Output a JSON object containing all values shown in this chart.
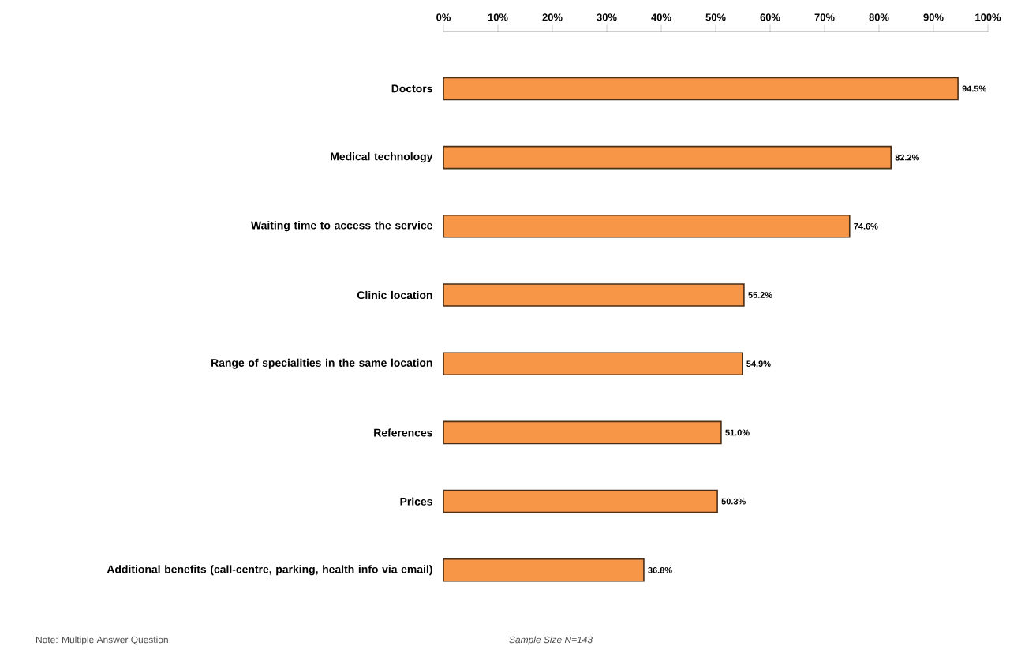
{
  "chart_data": {
    "type": "bar",
    "orientation": "horizontal",
    "categories": [
      "Doctors",
      "Medical technology",
      "Waiting time to access the service",
      "Clinic location",
      "Range of specialities in the same location",
      "References",
      "Prices",
      "Additional benefits (call-centre, parking, health info via email)"
    ],
    "values": [
      94.5,
      82.2,
      74.6,
      55.2,
      54.9,
      51.0,
      50.3,
      36.8
    ],
    "value_labels": [
      "94.5%",
      "82.2%",
      "74.6%",
      "55.2%",
      "54.9%",
      "51.0%",
      "50.3%",
      "36.8%"
    ],
    "color": "#f79646",
    "xlim": [
      0,
      100
    ],
    "xticks": [
      {
        "value": 0,
        "label": "0%"
      },
      {
        "value": 10,
        "label": "10%"
      },
      {
        "value": 20,
        "label": "20%"
      },
      {
        "value": 30,
        "label": "30%"
      },
      {
        "value": 40,
        "label": "40%"
      },
      {
        "value": 50,
        "label": "50%"
      },
      {
        "value": 60,
        "label": "60%"
      },
      {
        "value": 70,
        "label": "70%"
      },
      {
        "value": 80,
        "label": "80%"
      },
      {
        "value": 90,
        "label": "90%"
      },
      {
        "value": 100,
        "label": "100%"
      }
    ],
    "grid": false,
    "annotations": [
      "Note: Multiple Answer Question",
      "Sample Size N=143"
    ]
  }
}
